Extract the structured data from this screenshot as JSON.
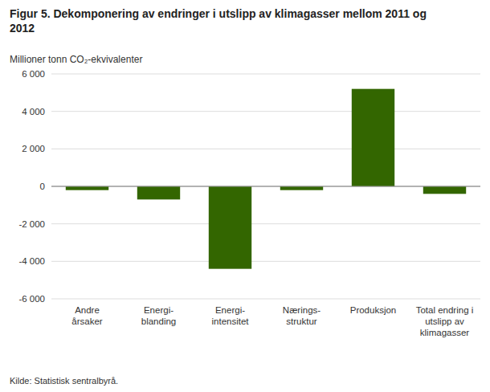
{
  "chart_data": {
    "type": "bar",
    "title": "Figur 5. Dekomponering av endringer i utslipp av klimagasser mellom 2011 og\n2012",
    "y_label": "Millioner tonn CO₂-ekvivalenter",
    "source": "Kilde: Statistisk sentralbyrå.",
    "categories": [
      "Andre\nårsaker",
      "Energi-\nblanding",
      "Energi-\nintensitet",
      "Nærings-\nstruktur",
      "Produksjon",
      "Total endring i\nutslipp av\nklimagasser"
    ],
    "values": [
      -200,
      -700,
      -4400,
      -200,
      5200,
      -400
    ],
    "color": "#336600",
    "ylim": [
      -6000,
      6000
    ],
    "yticks": [
      {
        "value": -6000,
        "label": "-6 000"
      },
      {
        "value": -4000,
        "label": "-4 000"
      },
      {
        "value": -2000,
        "label": "-2 000"
      },
      0,
      {
        "value": 2000,
        "label": "2 000"
      },
      {
        "value": 4000,
        "label": "4 000"
      },
      {
        "value": 6000,
        "label": "6 000"
      }
    ],
    "grid": true
  }
}
